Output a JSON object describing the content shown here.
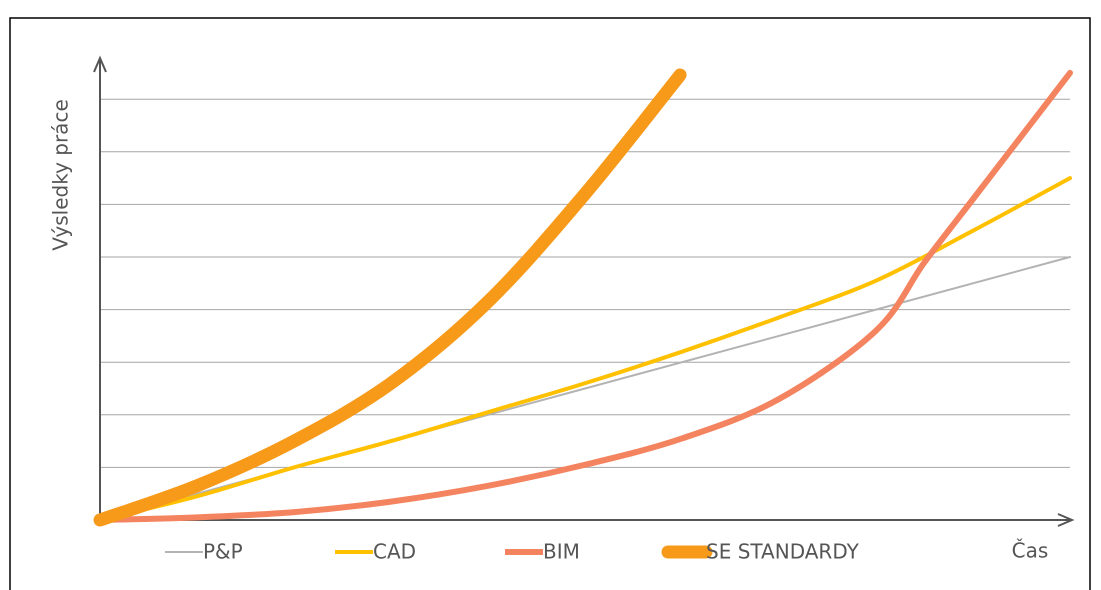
{
  "chart_data": {
    "type": "line",
    "y_label": "Výsledky práce",
    "x_label": "Čas",
    "xlim": [
      0,
      10
    ],
    "ylim": [
      0,
      8.6
    ],
    "yticks": [
      0,
      1,
      2,
      3,
      4,
      5,
      6,
      7,
      8
    ],
    "grid": true,
    "series": [
      {
        "name": "P&P",
        "color": "#b3b3b3",
        "x": [
          0,
          10
        ],
        "values": [
          0,
          5
        ]
      },
      {
        "name": "CAD",
        "color": "#ffc000",
        "x": [
          0,
          1,
          2,
          3,
          4,
          5,
          6,
          7,
          8,
          9,
          10
        ],
        "values": [
          0,
          0.45,
          1.0,
          1.5,
          2.05,
          2.6,
          3.2,
          3.85,
          4.55,
          5.5,
          6.5
        ]
      },
      {
        "name": "BIM",
        "color": "#f4845f",
        "x": [
          0,
          1,
          2,
          3,
          4,
          5,
          6,
          7,
          8,
          8.5,
          9,
          9.5,
          10
        ],
        "values": [
          0,
          0.05,
          0.15,
          0.35,
          0.65,
          1.05,
          1.55,
          2.3,
          3.6,
          4.9,
          6.1,
          7.3,
          8.5
        ]
      },
      {
        "name": "SE STANDARDY",
        "color": "#f79a1a",
        "x": [
          0,
          1,
          2,
          3,
          4,
          5,
          5.98
        ],
        "values": [
          0,
          0.65,
          1.5,
          2.6,
          4.15,
          6.2,
          8.46
        ]
      }
    ]
  }
}
